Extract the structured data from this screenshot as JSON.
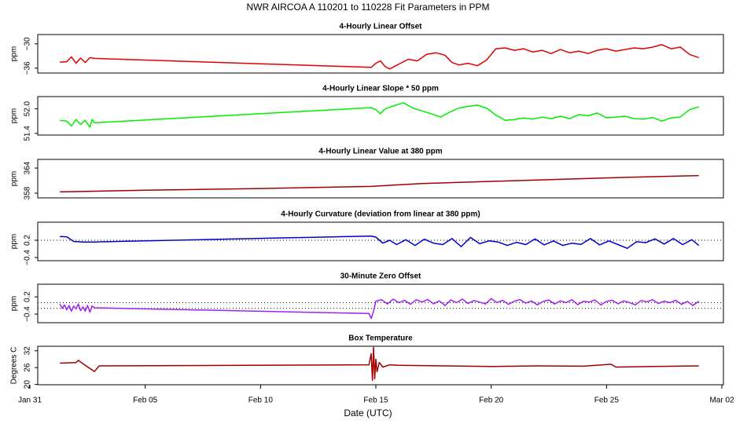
{
  "title": "NWR   AIRCOA A   110201 to 110228   Fit Parameters in PPM",
  "xlabel": "Date (UTC)",
  "chart_data": [
    {
      "type": "line",
      "title": "4-Hourly Linear Offset",
      "ylabel": "ppm",
      "color": "#e00000",
      "xlim": [
        0,
        30
      ],
      "ylim": [
        -37.2,
        -27.7
      ],
      "yticks": [
        {
          "value": -30,
          "label": "−30"
        },
        {
          "value": -36,
          "label": "−36"
        }
      ],
      "x": [
        1.3,
        1.6,
        1.8,
        2.0,
        2.2,
        2.4,
        2.6,
        2.8,
        14.8,
        15.0,
        15.2,
        15.4,
        15.6,
        16.0,
        16.4,
        16.8,
        17.2,
        17.6,
        18.0,
        18.3,
        18.6,
        19.0,
        19.4,
        19.8,
        20.2,
        20.6,
        21.0,
        21.4,
        21.8,
        22.2,
        22.6,
        23.0,
        23.4,
        23.8,
        24.2,
        24.6,
        25.0,
        25.4,
        25.8,
        26.2,
        26.6,
        27.0,
        27.4,
        27.8,
        28.2,
        28.6,
        29.0
      ],
      "values": [
        -34.5,
        -34.4,
        -33.2,
        -34.8,
        -33.5,
        -34.6,
        -33.4,
        -33.6,
        -35.8,
        -34.8,
        -34.2,
        -35.6,
        -36.2,
        -35.0,
        -33.8,
        -34.2,
        -32.6,
        -32.2,
        -32.8,
        -34.6,
        -35.2,
        -34.8,
        -35.4,
        -34.0,
        -31.2,
        -31.0,
        -31.6,
        -31.2,
        -32.0,
        -31.6,
        -32.4,
        -31.4,
        -32.2,
        -31.8,
        -32.4,
        -31.6,
        -31.2,
        -31.8,
        -31.4,
        -31.0,
        -31.2,
        -30.8,
        -30.2,
        -31.2,
        -30.8,
        -32.6,
        -33.4
      ]
    },
    {
      "type": "line",
      "title": "4-Hourly Linear Slope * 50 ppm",
      "ylabel": "ppm",
      "color": "#00ee00",
      "xlim": [
        0,
        30
      ],
      "ylim": [
        51.36,
        52.3
      ],
      "yticks": [
        {
          "value": 52,
          "label": "52.0"
        },
        51.4
      ],
      "x": [
        1.3,
        1.6,
        1.8,
        2.0,
        2.2,
        2.4,
        2.6,
        2.7,
        2.8,
        14.8,
        15.0,
        15.2,
        15.4,
        15.8,
        16.2,
        16.6,
        17.0,
        17.4,
        17.8,
        18.2,
        18.6,
        19.0,
        19.4,
        19.8,
        20.2,
        20.6,
        21.0,
        21.4,
        21.8,
        22.2,
        22.6,
        23.0,
        23.4,
        23.8,
        24.2,
        24.6,
        25.0,
        25.4,
        25.8,
        26.2,
        26.6,
        27.0,
        27.4,
        27.8,
        28.2,
        28.6,
        29.0
      ],
      "values": [
        51.72,
        51.7,
        51.58,
        51.74,
        51.62,
        51.72,
        51.55,
        51.74,
        51.66,
        52.03,
        51.98,
        51.88,
        52.0,
        52.08,
        52.15,
        52.02,
        51.95,
        51.88,
        51.8,
        51.92,
        52.02,
        52.06,
        52.09,
        52.02,
        51.85,
        51.72,
        51.74,
        51.78,
        51.75,
        51.8,
        51.76,
        51.82,
        51.76,
        51.86,
        51.83,
        51.9,
        51.78,
        51.8,
        51.82,
        51.76,
        51.75,
        51.79,
        51.7,
        51.78,
        51.8,
        51.98,
        52.05
      ]
    },
    {
      "type": "line",
      "title": "4-Hourly Linear Value at 380 ppm",
      "ylabel": "ppm",
      "color": "#a00000",
      "xlim": [
        0,
        30
      ],
      "ylim": [
        356.87,
        366.06
      ],
      "yticks": [
        364,
        358
      ],
      "x": [
        1.3,
        5,
        10,
        14.8,
        17,
        20,
        23,
        26,
        29
      ],
      "values": [
        358.3,
        358.7,
        359.1,
        359.6,
        360.3,
        360.8,
        361.3,
        361.8,
        362.2
      ]
    },
    {
      "type": "line",
      "title": "4-Hourly Curvature (deviation from linear at 380 ppm)",
      "ylabel": "ppm",
      "color": "#0000cc",
      "xlim": [
        0,
        30
      ],
      "ylim": [
        -0.51,
        0.83
      ],
      "yticks": [
        0.2,
        {
          "value": -0.4,
          "label": "−0.4"
        }
      ],
      "reference_lines": [
        0.2
      ],
      "x": [
        1.3,
        1.6,
        1.9,
        2.3,
        2.8,
        14.8,
        15.0,
        15.3,
        15.6,
        15.9,
        16.3,
        16.7,
        17.1,
        17.5,
        17.9,
        18.3,
        18.7,
        19.1,
        19.5,
        19.9,
        20.3,
        20.7,
        21.1,
        21.5,
        21.9,
        22.3,
        22.7,
        23.1,
        23.5,
        23.9,
        24.3,
        24.7,
        25.1,
        25.5,
        25.9,
        26.3,
        26.7,
        27.1,
        27.5,
        27.9,
        28.3,
        28.7,
        29.0
      ],
      "values": [
        0.33,
        0.32,
        0.16,
        0.14,
        0.14,
        0.35,
        0.31,
        0.1,
        0.2,
        0.05,
        0.22,
        0.02,
        0.24,
        0.1,
        0.05,
        0.26,
        -0.02,
        0.3,
        0.08,
        0.18,
        0.14,
        0.02,
        0.13,
        0.05,
        0.25,
        0.04,
        0.18,
        0.02,
        0.1,
        0.06,
        0.26,
        0.04,
        0.18,
        0.05,
        -0.08,
        0.15,
        0.12,
        0.25,
        0.07,
        0.26,
        0.05,
        0.22,
        0.02
      ]
    },
    {
      "type": "line",
      "title": "30-Minute Zero Offset",
      "ylabel": "ppm",
      "color": "#a020f0",
      "xlim": [
        0,
        30
      ],
      "ylim": [
        -0.7,
        0.64
      ],
      "yticks": [
        0.2,
        {
          "value": -0.4,
          "label": "−0.4"
        }
      ],
      "reference_lines": [
        0,
        -0.2
      ],
      "x": [
        1.3,
        1.4,
        1.5,
        1.6,
        1.7,
        1.8,
        1.9,
        2.0,
        2.1,
        2.2,
        2.3,
        2.4,
        2.5,
        2.6,
        2.7,
        2.8,
        14.7,
        14.8,
        14.9,
        15.0,
        15.25,
        15.5,
        15.75,
        16.0,
        16.25,
        16.5,
        16.75,
        17.0,
        17.25,
        17.5,
        17.75,
        18.0,
        18.25,
        18.5,
        18.75,
        19.0,
        19.25,
        19.5,
        19.75,
        20.0,
        20.25,
        20.5,
        20.75,
        21.0,
        21.25,
        21.5,
        21.75,
        22.0,
        22.25,
        22.5,
        22.75,
        23.0,
        23.25,
        23.5,
        23.75,
        24.0,
        24.25,
        24.5,
        24.75,
        25.0,
        25.25,
        25.5,
        25.75,
        26.0,
        26.25,
        26.5,
        26.75,
        27.0,
        27.25,
        27.5,
        27.75,
        28.0,
        28.25,
        28.5,
        28.75,
        29.0
      ],
      "values": [
        -0.05,
        -0.2,
        -0.08,
        -0.25,
        -0.1,
        -0.3,
        -0.12,
        -0.22,
        -0.05,
        -0.28,
        -0.15,
        -0.3,
        -0.1,
        -0.33,
        -0.12,
        -0.18,
        -0.38,
        -0.55,
        -0.3,
        0.05,
        0.1,
        -0.05,
        0.12,
        0.0,
        0.08,
        -0.06,
        0.1,
        0.02,
        0.11,
        -0.04,
        0.06,
        -0.1,
        0.09,
        0.0,
        0.12,
        -0.03,
        0.07,
        0.02,
        -0.05,
        0.14,
        0.0,
        0.08,
        -0.06,
        0.05,
        0.1,
        -0.02,
        0.06,
        -0.08,
        0.04,
        0.09,
        -0.05,
        0.06,
        0.0,
        0.1,
        -0.07,
        0.05,
        0.02,
        0.09,
        -0.08,
        0.04,
        0.08,
        -0.04,
        0.06,
        0.0,
        -0.08,
        0.07,
        0.03,
        0.1,
        -0.03,
        0.05,
        0.0,
        0.08,
        -0.06,
        0.04,
        -0.1,
        0.05
      ]
    },
    {
      "type": "line",
      "title": "Box Temperature",
      "ylabel": "Degrees C",
      "color": "#a00000",
      "xlim": [
        0,
        30
      ],
      "ylim": [
        19.9,
        33.6
      ],
      "yticks": [
        32,
        26,
        20
      ],
      "xticks": [
        {
          "value": 0,
          "label": "Jan 31"
        },
        {
          "value": 5,
          "label": "Feb 05"
        },
        {
          "value": 10,
          "label": "Feb 10"
        },
        {
          "value": 15,
          "label": "Feb 15"
        },
        {
          "value": 20,
          "label": "Feb 20"
        },
        {
          "value": 25,
          "label": "Feb 25"
        },
        {
          "value": 30,
          "label": "Mar 02"
        }
      ],
      "x": [
        1.3,
        2.0,
        2.1,
        2.3,
        2.8,
        3.0,
        14.7,
        14.8,
        14.85,
        14.9,
        14.95,
        15.0,
        15.05,
        15.15,
        15.3,
        15.6,
        16,
        18,
        20,
        22,
        24,
        25.2,
        25.4,
        27,
        29
      ],
      "values": [
        27.6,
        27.8,
        28.6,
        27.4,
        24.6,
        26.6,
        27.0,
        31.0,
        21.5,
        33.2,
        22.0,
        29.0,
        24.5,
        27.8,
        26.2,
        27.0,
        26.8,
        26.6,
        26.4,
        26.6,
        26.5,
        27.2,
        26.2,
        26.4,
        26.6
      ]
    }
  ]
}
